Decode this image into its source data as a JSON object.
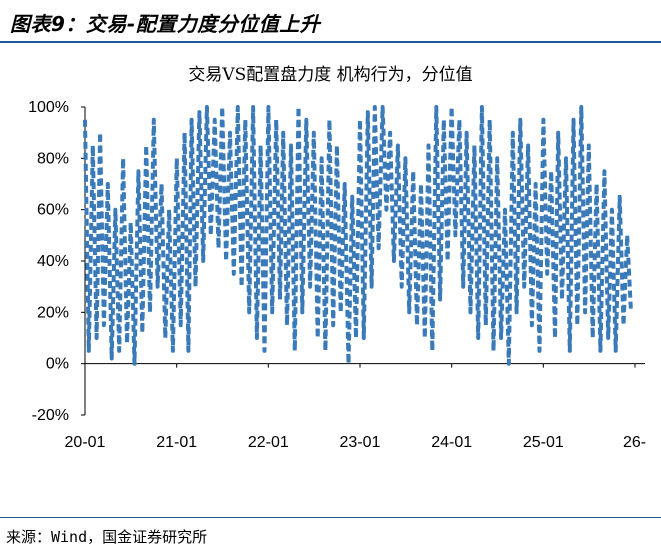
{
  "figure": {
    "title": "图表9：交易-配置力度分位值上升",
    "source": "来源：Wind，国金证券研究所"
  },
  "chart_data": {
    "type": "line",
    "title": "交易VS配置盘力度 机构行为，分位值",
    "y_tick_labels": [
      "100%",
      "80%",
      "60%",
      "40%",
      "20%",
      "0%",
      "-20%"
    ],
    "y_tick_values": [
      100,
      80,
      60,
      40,
      20,
      0,
      -20
    ],
    "x_tick_labels": [
      "20-01",
      "21-01",
      "22-01",
      "23-01",
      "24-01",
      "25-01",
      "26-"
    ],
    "ylim": [
      -20,
      100
    ],
    "grid": false,
    "legend": "none",
    "line_style": "dashed",
    "series_color": "#3a7ab8",
    "series": [
      {
        "x": [
          "2020-01",
          "2020-01",
          "2020-02",
          "2020-02",
          "2020-03",
          "2020-03",
          "2020-04",
          "2020-04",
          "2020-05",
          "2020-05",
          "2020-06",
          "2020-06",
          "2020-07",
          "2020-07",
          "2020-08",
          "2020-08",
          "2020-09",
          "2020-09",
          "2020-10",
          "2020-10",
          "2020-11",
          "2020-11",
          "2020-12",
          "2020-12",
          "2021-01",
          "2021-01",
          "2021-02",
          "2021-02",
          "2021-03",
          "2021-03",
          "2021-04",
          "2021-04",
          "2021-05",
          "2021-05",
          "2021-06",
          "2021-06",
          "2021-07",
          "2021-07",
          "2021-08",
          "2021-08",
          "2021-09",
          "2021-09",
          "2021-10",
          "2021-10",
          "2021-11",
          "2021-11",
          "2021-12",
          "2021-12",
          "2022-01",
          "2022-01",
          "2022-02",
          "2022-02",
          "2022-03",
          "2022-03",
          "2022-04",
          "2022-04",
          "2022-05",
          "2022-05",
          "2022-06",
          "2022-06",
          "2022-07",
          "2022-07",
          "2022-08",
          "2022-08",
          "2022-09",
          "2022-09",
          "2022-10",
          "2022-10",
          "2022-11",
          "2022-11",
          "2022-12",
          "2022-12",
          "2023-01",
          "2023-01",
          "2023-02",
          "2023-02",
          "2023-03",
          "2023-03",
          "2023-04",
          "2023-04",
          "2023-05",
          "2023-05",
          "2023-06",
          "2023-06",
          "2023-07",
          "2023-07",
          "2023-08",
          "2023-08",
          "2023-09",
          "2023-09",
          "2023-10",
          "2023-10",
          "2023-11",
          "2023-11",
          "2023-12",
          "2023-12",
          "2024-01",
          "2024-01",
          "2024-02",
          "2024-02",
          "2024-03",
          "2024-03",
          "2024-04",
          "2024-04",
          "2024-05",
          "2024-05",
          "2024-06",
          "2024-06",
          "2024-07",
          "2024-07",
          "2024-08",
          "2024-08",
          "2024-09",
          "2024-09",
          "2024-10",
          "2024-10",
          "2024-11",
          "2024-11",
          "2024-12",
          "2024-12",
          "2025-01",
          "2025-01",
          "2025-02",
          "2025-02",
          "2025-03",
          "2025-03",
          "2025-04",
          "2025-04",
          "2025-05",
          "2025-05",
          "2025-06",
          "2025-06",
          "2025-07",
          "2025-07",
          "2025-08",
          "2025-08",
          "2025-09",
          "2025-09",
          "2025-10",
          "2025-10",
          "2025-11",
          "2025-11",
          "2025-12",
          "2025-12"
        ],
        "y": [
          95,
          5,
          85,
          10,
          90,
          15,
          70,
          2,
          60,
          5,
          80,
          8,
          55,
          0,
          75,
          12,
          85,
          20,
          95,
          30,
          70,
          10,
          60,
          5,
          80,
          15,
          90,
          5,
          95,
          30,
          98,
          40,
          100,
          50,
          95,
          45,
          100,
          40,
          90,
          35,
          100,
          30,
          95,
          20,
          100,
          10,
          85,
          5,
          100,
          20,
          95,
          25,
          90,
          15,
          85,
          5,
          100,
          20,
          95,
          30,
          90,
          10,
          80,
          5,
          95,
          15,
          85,
          20,
          70,
          0,
          65,
          10,
          95,
          10,
          98,
          30,
          100,
          45,
          100,
          60,
          90,
          40,
          85,
          30,
          80,
          20,
          75,
          15,
          70,
          10,
          85,
          5,
          100,
          25,
          95,
          40,
          100,
          50,
          95,
          30,
          90,
          20,
          85,
          10,
          100,
          15,
          95,
          5,
          80,
          10,
          60,
          0,
          90,
          20,
          95,
          30,
          85,
          15,
          70,
          5,
          95,
          35,
          75,
          10,
          90,
          25,
          80,
          5,
          95,
          15,
          100,
          20,
          85,
          10,
          70,
          5,
          75,
          10,
          60,
          5,
          65,
          15,
          50,
          20
        ]
      }
    ]
  }
}
